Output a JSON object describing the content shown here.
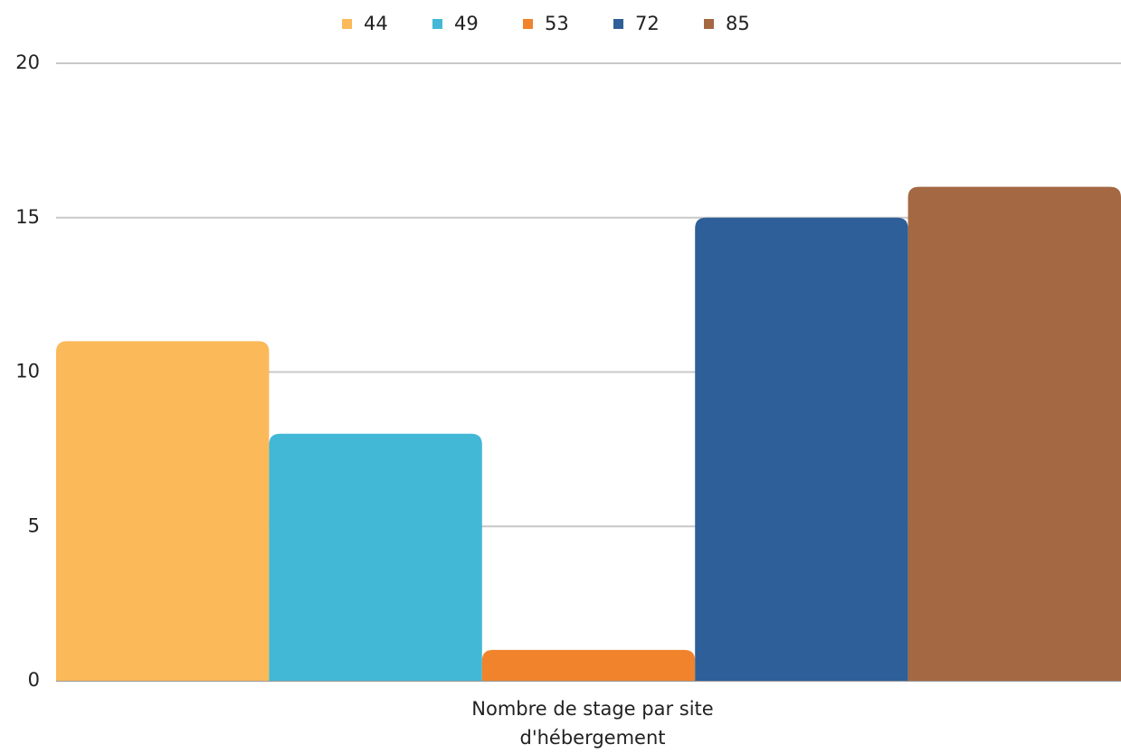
{
  "chart_data": {
    "type": "bar",
    "categories": [
      "Nombre de stage par site d'hébergement"
    ],
    "series": [
      {
        "name": "44",
        "color": "#fbb95a",
        "values": [
          11
        ]
      },
      {
        "name": "49",
        "color": "#42b8d6",
        "values": [
          8
        ]
      },
      {
        "name": "53",
        "color": "#f0832c",
        "values": [
          1
        ]
      },
      {
        "name": "72",
        "color": "#2e5f98",
        "values": [
          15
        ]
      },
      {
        "name": "85",
        "color": "#a46843",
        "values": [
          16
        ]
      }
    ],
    "ylim": [
      0,
      20
    ],
    "yticks": [
      0,
      5,
      10,
      15,
      20
    ],
    "grid": true,
    "legend": "top"
  }
}
